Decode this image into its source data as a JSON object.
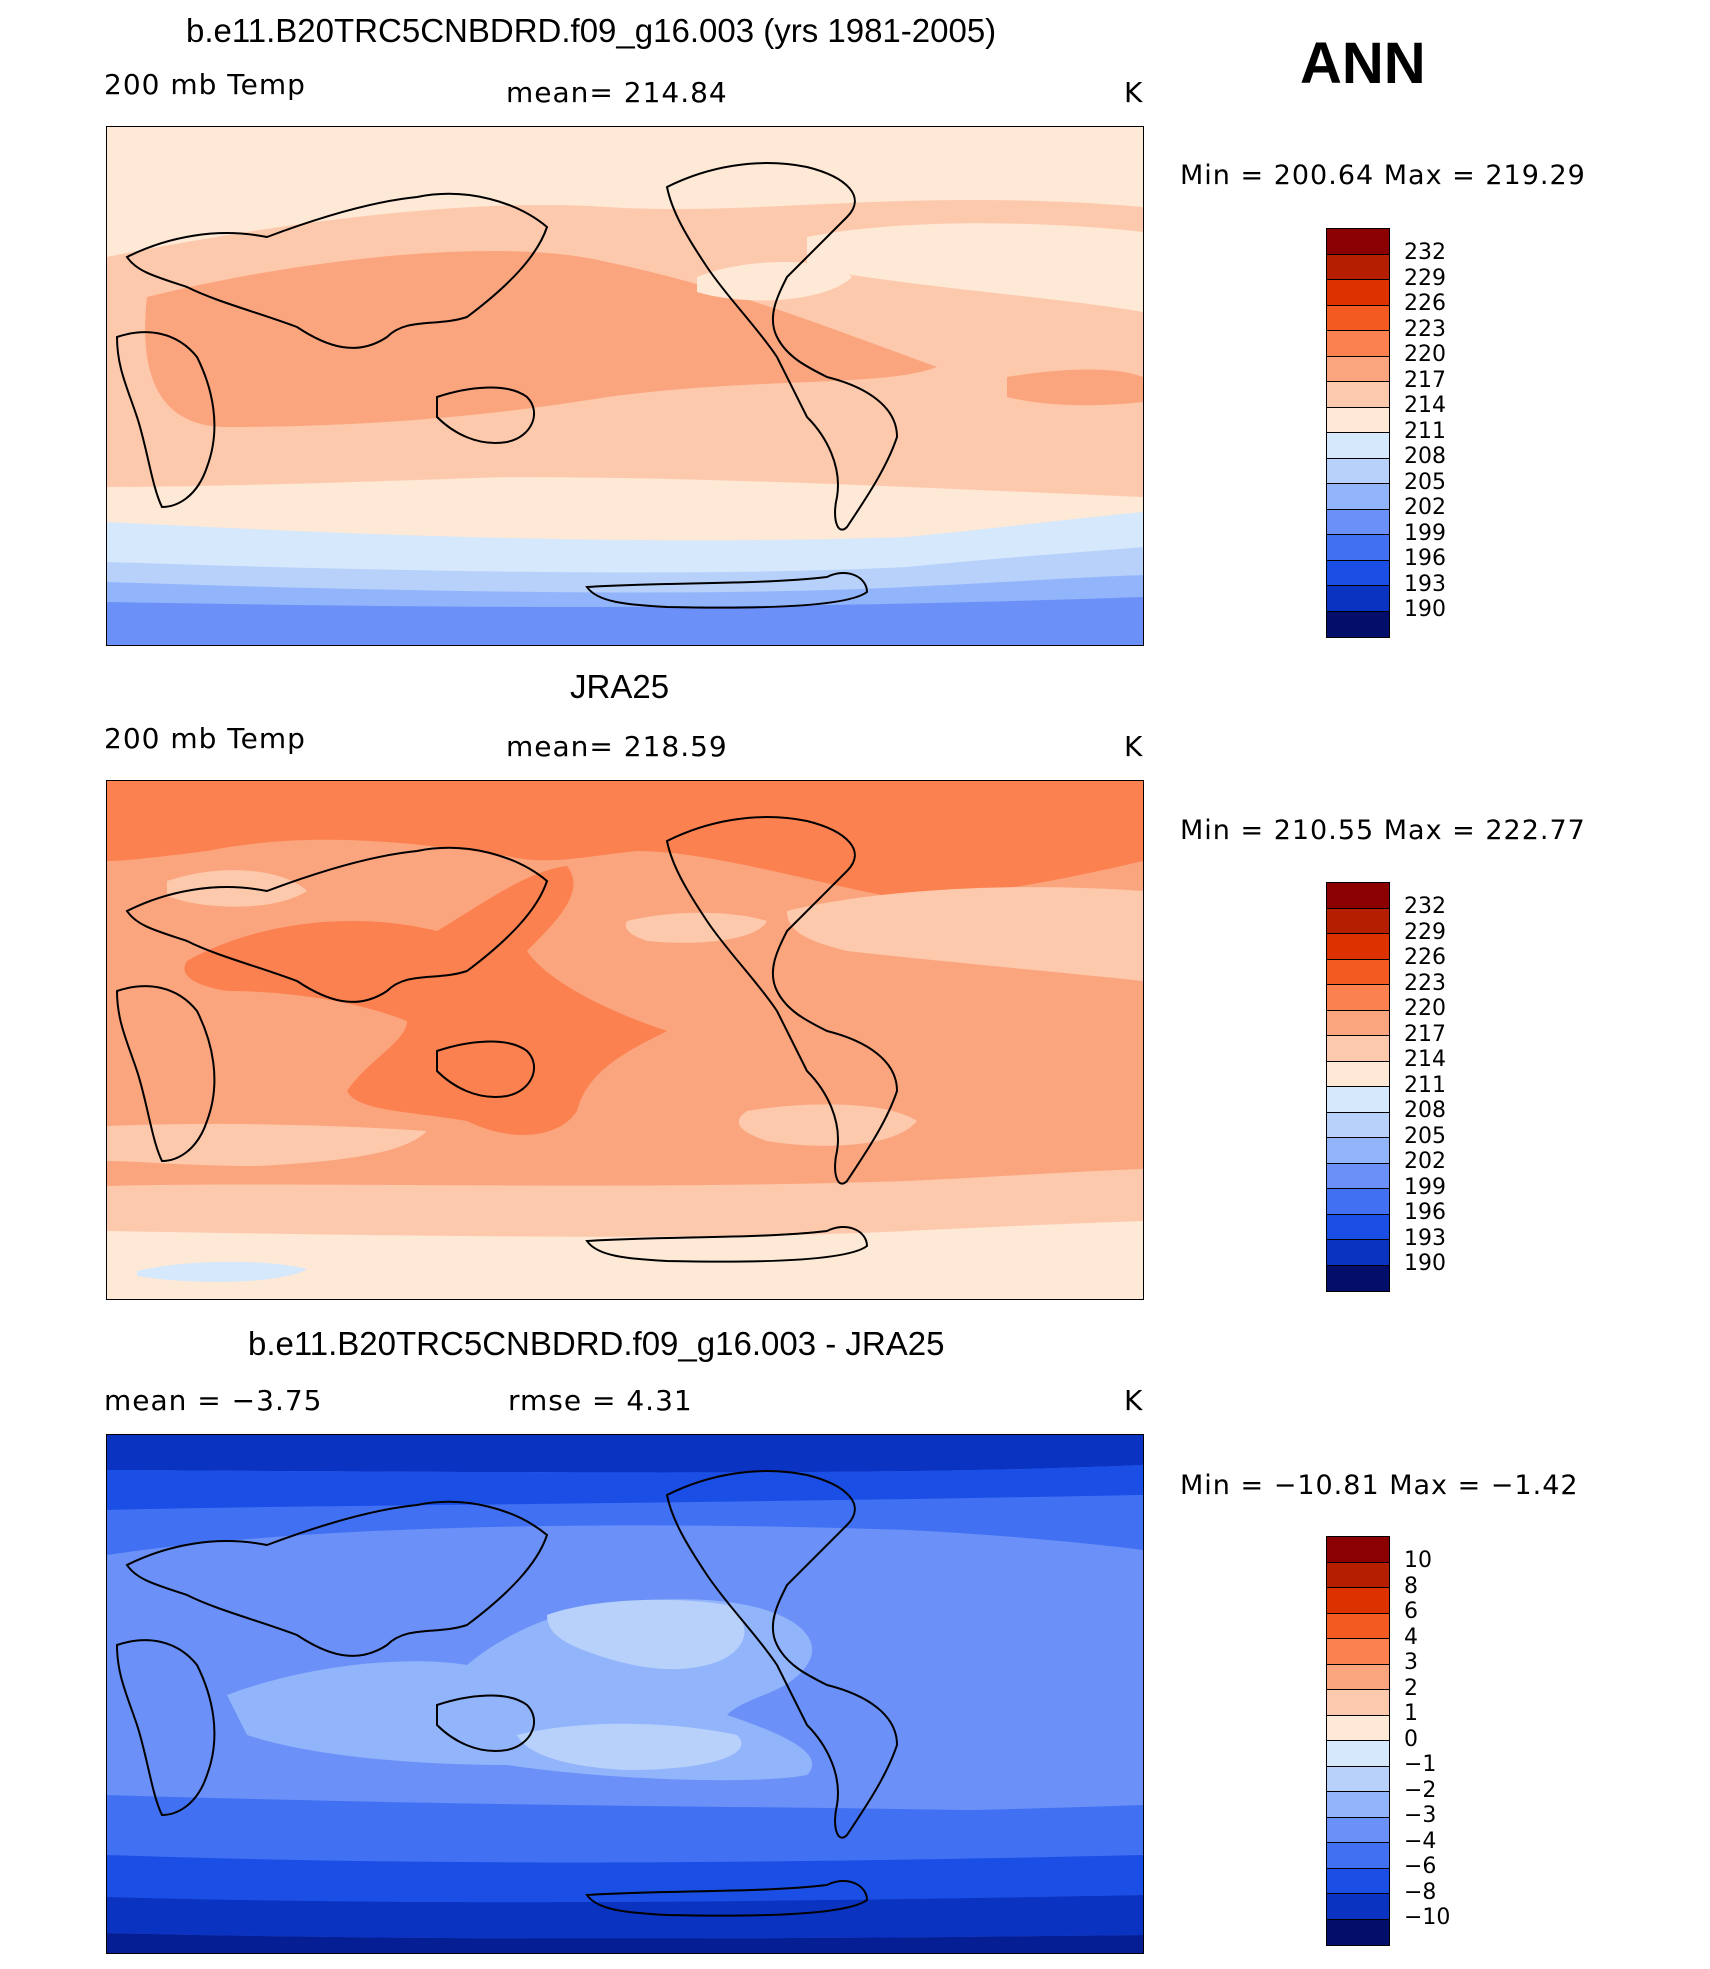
{
  "season": "ANN",
  "panels": [
    {
      "title": "b.e11.B20TRC5CNBDRD.f09_g16.003 (yrs 1981-2005)",
      "left_label": "200 mb Temp",
      "center_label": "mean=  214.84",
      "unit": "K",
      "minmax": "Min  =  200.64  Max  =  219.29",
      "colorbar_levels": [
        "232",
        "229",
        "226",
        "223",
        "220",
        "217",
        "214",
        "211",
        "208",
        "205",
        "202",
        "199",
        "196",
        "193",
        "190"
      ]
    },
    {
      "title": "JRA25",
      "left_label": "200 mb Temp",
      "center_label": "mean=  218.59",
      "unit": "K",
      "minmax": "Min  =  210.55  Max  =  222.77",
      "colorbar_levels": [
        "232",
        "229",
        "226",
        "223",
        "220",
        "217",
        "214",
        "211",
        "208",
        "205",
        "202",
        "199",
        "196",
        "193",
        "190"
      ]
    },
    {
      "title": "b.e11.B20TRC5CNBDRD.f09_g16.003 - JRA25",
      "left_label": "mean  =    −3.75",
      "center_label": "rmse  =     4.31",
      "unit": "K",
      "minmax": "Min  =  −10.81  Max  =    −1.42",
      "colorbar_levels": [
        "10",
        "8",
        "6",
        "4",
        "3",
        "2",
        "1",
        "0",
        "−1",
        "−2",
        "−3",
        "−4",
        "−6",
        "−8",
        "−10"
      ]
    }
  ],
  "colors": {
    "scale": [
      "#8b0000",
      "#b51e00",
      "#dd3200",
      "#f25a22",
      "#fb8150",
      "#fba57e",
      "#fdc9ac",
      "#fee8d6",
      "#d6e8fb",
      "#b7d1fb",
      "#92b4fb",
      "#6b91f8",
      "#4171f2",
      "#1a4ee5",
      "#0a33c2",
      "#061e93",
      "#020e6a"
    ]
  },
  "chart_data": [
    {
      "type": "heatmap",
      "title": "b.e11.B20TRC5CNBDRD.f09_g16.003 (yrs 1981-2005)",
      "variable": "200 mb Temp",
      "units": "K",
      "mean": 214.84,
      "min": 200.64,
      "max": 219.29,
      "contour_levels": [
        190,
        193,
        196,
        199,
        202,
        205,
        208,
        211,
        214,
        217,
        220,
        223,
        226,
        229,
        232
      ]
    },
    {
      "type": "heatmap",
      "title": "JRA25",
      "variable": "200 mb Temp",
      "units": "K",
      "mean": 218.59,
      "min": 210.55,
      "max": 222.77,
      "contour_levels": [
        190,
        193,
        196,
        199,
        202,
        205,
        208,
        211,
        214,
        217,
        220,
        223,
        226,
        229,
        232
      ]
    },
    {
      "type": "heatmap",
      "title": "b.e11.B20TRC5CNBDRD.f09_g16.003 - JRA25",
      "units": "K",
      "mean": -3.75,
      "rmse": 4.31,
      "min": -10.81,
      "max": -1.42,
      "contour_levels": [
        -10,
        -8,
        -6,
        -4,
        -3,
        -2,
        -1,
        0,
        1,
        2,
        3,
        4,
        6,
        8,
        10
      ]
    }
  ]
}
